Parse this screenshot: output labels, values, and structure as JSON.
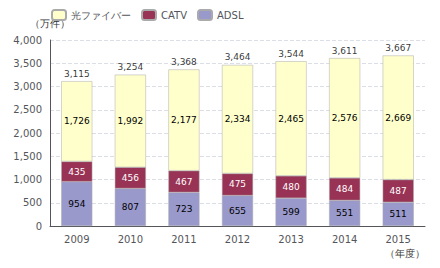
{
  "chart_data": {
    "type": "bar",
    "stacked": true,
    "categories": [
      "2009",
      "2010",
      "2011",
      "2012",
      "2013",
      "2014",
      "2015"
    ],
    "series": [
      {
        "name": "ADSL",
        "color": "#9999cc",
        "values": [
          954,
          807,
          723,
          655,
          599,
          551,
          511
        ],
        "value_labels": [
          "954",
          "807",
          "723",
          "655",
          "599",
          "551",
          "511"
        ]
      },
      {
        "name": "CATV",
        "color": "#993355",
        "values": [
          435,
          456,
          467,
          475,
          480,
          484,
          487
        ],
        "value_labels": [
          "435",
          "456",
          "467",
          "475",
          "480",
          "484",
          "487"
        ]
      },
      {
        "name": "光ファイバー",
        "color": "#ffffcc",
        "values": [
          1726,
          1992,
          2177,
          2334,
          2465,
          2576,
          2669
        ],
        "value_labels": [
          "1,726",
          "1,992",
          "2,177",
          "2,334",
          "2,465",
          "2,576",
          "2,669"
        ]
      }
    ],
    "totals": [
      3115,
      3254,
      3368,
      3464,
      3544,
      3611,
      3667
    ],
    "total_labels": [
      "3,115",
      "3,254",
      "3,368",
      "3,464",
      "3,544",
      "3,611",
      "3,667"
    ],
    "xlabel": "（年度）",
    "ylabel": "（万件）",
    "ylim": [
      0,
      4000
    ],
    "yticks": [
      0,
      500,
      {
        "value": 1000,
        "label": "1,000"
      },
      {
        "value": 1500,
        "label": "1,500"
      },
      {
        "value": 2000,
        "label": "2,000"
      },
      {
        "value": 2500,
        "label": "2,500"
      },
      {
        "value": 3000,
        "label": "3,000"
      },
      {
        "value": 3500,
        "label": "3,500"
      },
      {
        "value": 4000,
        "label": "4,000"
      }
    ],
    "grid": true,
    "data_labels": true,
    "legend": "upper left"
  }
}
